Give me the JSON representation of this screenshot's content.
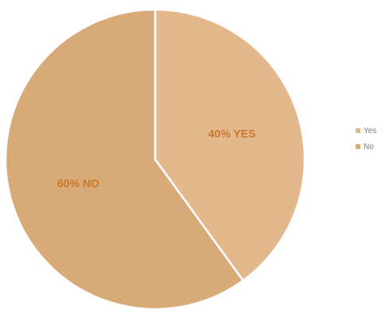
{
  "chart_data": {
    "type": "pie",
    "title": "",
    "categories": [
      "Yes",
      "No"
    ],
    "values": [
      40,
      60
    ],
    "data_labels": [
      "40% YES",
      "60% NO"
    ],
    "colors": [
      "#e2b88c",
      "#d8aa78"
    ],
    "label_color": "#c8782a",
    "legend_position": "right",
    "legend": [
      {
        "label": "Yes",
        "color": "#e2b88c"
      },
      {
        "label": "No",
        "color": "#d8aa78"
      }
    ]
  }
}
